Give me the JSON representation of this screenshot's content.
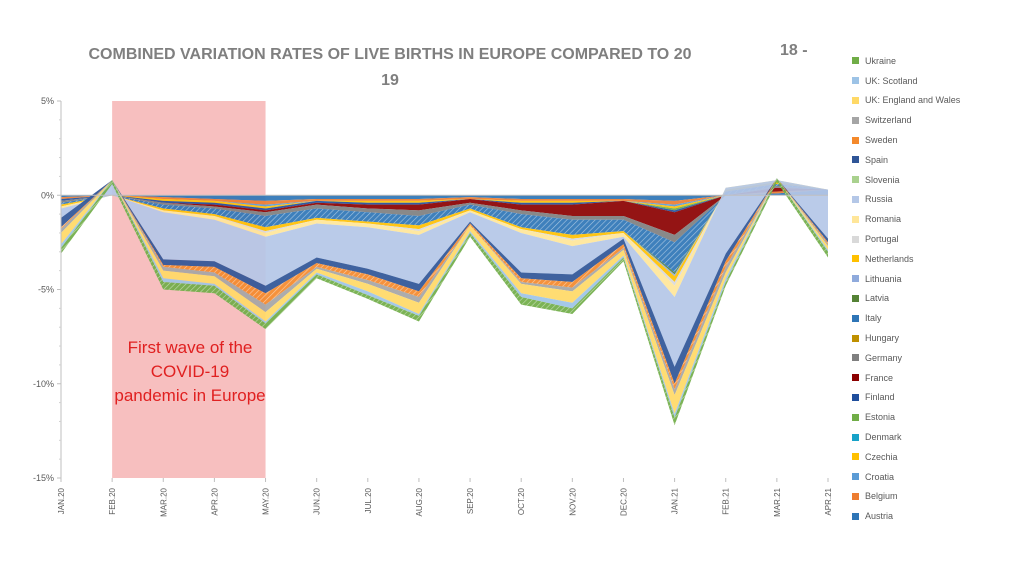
{
  "chart_data": {
    "type": "area",
    "title": "COMBINED VARIATION RATES OF LIVE BIRTHS IN EUROPE COMPARED TO 20",
    "title_line2": "19",
    "title_suffix": "18 -",
    "x": [
      "JAN.20",
      "FEB.20",
      "MAR.20",
      "APR.20",
      "MAY.20",
      "JUN.20",
      "JUL.20",
      "AUG.20",
      "SEP.20",
      "OCT.20",
      "NOV.20",
      "DEC.20",
      "JAN.21",
      "FEB.21",
      "MAR.21",
      "APR.21"
    ],
    "y_ticks": [
      "5%",
      "0%",
      "-5%",
      "-10%",
      "-15%"
    ],
    "ylim": [
      -15,
      5
    ],
    "grid": false,
    "legend_position": "right",
    "annotation": {
      "text": "First wave of the COVID-19 pandemic in Europe",
      "x_start": "FEB.20",
      "x_end": "MAY.20",
      "color": "#f4a9a9"
    },
    "series": [
      {
        "name": "Austria",
        "color": "#2e75b6",
        "values": [
          -0.1,
          0.0,
          -0.1,
          -0.2,
          -0.3,
          -0.2,
          -0.2,
          -0.2,
          -0.1,
          -0.2,
          -0.2,
          -0.2,
          -0.3,
          0.0,
          0.1,
          0.3
        ]
      },
      {
        "name": "Belgium",
        "color": "#ed7d31",
        "values": [
          -0.1,
          0.0,
          -0.1,
          -0.1,
          -0.2,
          -0.1,
          -0.1,
          -0.1,
          -0.1,
          -0.1,
          -0.1,
          -0.1,
          -0.2,
          0.0,
          0.1,
          0.0
        ]
      },
      {
        "name": "Croatia",
        "color": "#5b9bd5",
        "values": [
          0.0,
          0.0,
          0.0,
          0.0,
          -0.1,
          0.0,
          0.0,
          0.0,
          0.0,
          0.0,
          0.0,
          0.0,
          -0.1,
          0.0,
          0.0,
          0.0
        ]
      },
      {
        "name": "Czechia",
        "color": "#ffc000",
        "values": [
          0.0,
          0.0,
          -0.1,
          -0.1,
          -0.1,
          0.0,
          -0.1,
          -0.1,
          0.0,
          -0.1,
          -0.1,
          0.0,
          -0.1,
          0.0,
          0.0,
          0.0
        ]
      },
      {
        "name": "Denmark",
        "color": "#17a2c8",
        "values": [
          0.0,
          0.0,
          0.0,
          0.0,
          0.0,
          0.0,
          0.0,
          0.0,
          0.0,
          0.0,
          0.0,
          0.0,
          0.0,
          0.0,
          0.0,
          0.0
        ]
      },
      {
        "name": "Estonia",
        "color": "#70ad47",
        "values": [
          0.0,
          0.0,
          0.0,
          0.0,
          0.0,
          0.0,
          0.0,
          0.0,
          0.0,
          0.0,
          0.0,
          0.0,
          -0.1,
          0.0,
          0.0,
          0.0
        ]
      },
      {
        "name": "Finland",
        "color": "#1f4e9c",
        "values": [
          -0.1,
          0.0,
          -0.1,
          -0.1,
          -0.1,
          -0.1,
          -0.1,
          -0.1,
          0.0,
          -0.1,
          -0.1,
          0.0,
          -0.1,
          0.0,
          0.0,
          0.0
        ]
      },
      {
        "name": "France",
        "color": "#8b0000",
        "values": [
          0.0,
          0.0,
          0.0,
          -0.1,
          -0.1,
          -0.1,
          -0.2,
          -0.3,
          -0.2,
          -0.3,
          -0.6,
          -0.8,
          -1.2,
          0.0,
          0.2,
          0.0
        ]
      },
      {
        "name": "Germany",
        "color": "#7f7f7f",
        "values": [
          -0.1,
          0.0,
          -0.1,
          -0.1,
          -0.2,
          -0.2,
          -0.2,
          -0.3,
          -0.1,
          -0.2,
          -0.2,
          -0.2,
          -0.4,
          0.0,
          0.1,
          0.0
        ]
      },
      {
        "name": "Hungary",
        "color": "#bf9000",
        "values": [
          0.0,
          0.0,
          0.0,
          0.0,
          0.0,
          0.0,
          0.0,
          0.0,
          0.0,
          0.0,
          0.0,
          0.0,
          0.0,
          0.0,
          0.0,
          0.0
        ]
      },
      {
        "name": "Italy",
        "color": "#2e75b6",
        "values": [
          -0.1,
          0.0,
          -0.2,
          -0.3,
          -0.6,
          -0.5,
          -0.5,
          -0.5,
          -0.2,
          -0.7,
          -0.8,
          -0.6,
          -1.6,
          0.2,
          0.1,
          0.0
        ]
      },
      {
        "name": "Latvia",
        "color": "#548235",
        "values": [
          0.0,
          0.0,
          0.0,
          0.0,
          0.0,
          0.0,
          0.0,
          0.0,
          0.0,
          0.0,
          0.0,
          0.0,
          -0.1,
          0.0,
          0.0,
          0.0
        ]
      },
      {
        "name": "Lithuania",
        "color": "#8faadc",
        "values": [
          0.0,
          0.0,
          0.0,
          0.0,
          0.0,
          0.0,
          0.0,
          0.0,
          0.0,
          0.0,
          0.0,
          0.0,
          -0.1,
          0.0,
          0.0,
          0.0
        ]
      },
      {
        "name": "Netherlands",
        "color": "#ffc000",
        "values": [
          -0.1,
          0.0,
          -0.1,
          -0.1,
          -0.2,
          -0.1,
          -0.1,
          -0.2,
          -0.1,
          -0.1,
          -0.2,
          -0.1,
          -0.3,
          0.1,
          0.1,
          0.0
        ]
      },
      {
        "name": "Portugal",
        "color": "#d9d9d9",
        "values": [
          0.0,
          0.0,
          0.0,
          0.0,
          -0.1,
          0.0,
          0.0,
          -0.1,
          0.0,
          0.0,
          -0.1,
          0.0,
          -0.2,
          0.0,
          0.0,
          0.0
        ]
      },
      {
        "name": "Romania",
        "color": "#ffe699",
        "values": [
          -0.1,
          0.0,
          -0.1,
          -0.2,
          -0.2,
          -0.2,
          -0.2,
          -0.2,
          -0.1,
          -0.2,
          -0.3,
          -0.2,
          -0.6,
          0.1,
          0.1,
          0.0
        ]
      },
      {
        "name": "Russia",
        "color": "#b4c7e7",
        "values": [
          -0.5,
          0.8,
          -2.5,
          -2.2,
          -2.6,
          -1.8,
          -2.2,
          -2.6,
          -0.5,
          -2.1,
          -1.5,
          -0.1,
          -3.7,
          -3.5,
          0.1,
          -2.6
        ]
      },
      {
        "name": "Slovenia",
        "color": "#a9d18e",
        "values": [
          0.0,
          0.0,
          0.0,
          0.0,
          0.0,
          0.0,
          0.0,
          0.0,
          0.0,
          0.0,
          0.0,
          0.0,
          0.0,
          0.0,
          0.0,
          0.0
        ]
      },
      {
        "name": "Spain",
        "color": "#2f5597",
        "values": [
          -0.5,
          0.0,
          -0.3,
          -0.3,
          -0.4,
          -0.3,
          -0.3,
          -0.4,
          -0.1,
          -0.3,
          -0.4,
          -0.3,
          -0.9,
          -0.4,
          0.0,
          -0.2
        ]
      },
      {
        "name": "Sweden",
        "color": "#f4892b",
        "values": [
          -0.1,
          0.0,
          -0.1,
          -0.3,
          -0.6,
          -0.2,
          -0.3,
          -0.3,
          -0.1,
          -0.2,
          -0.3,
          -0.2,
          -0.3,
          -0.3,
          0.0,
          -0.1
        ]
      },
      {
        "name": "Switzerland",
        "color": "#a5a5a5",
        "values": [
          -0.2,
          0.0,
          -0.2,
          -0.2,
          -0.4,
          -0.1,
          -0.2,
          -0.3,
          0.0,
          -0.1,
          -0.2,
          -0.1,
          -0.3,
          -0.3,
          0.0,
          -0.1
        ]
      },
      {
        "name": "UK: England and Wales",
        "color": "#ffd966",
        "values": [
          -0.6,
          0.0,
          -0.4,
          -0.4,
          -0.5,
          -0.2,
          -0.4,
          -0.6,
          -0.3,
          -0.5,
          -0.6,
          -0.3,
          -1.0,
          -0.3,
          0.0,
          -0.2
        ]
      },
      {
        "name": "UK: Scotland",
        "color": "#9dc3e6",
        "values": [
          -0.2,
          0.0,
          -0.2,
          -0.1,
          -0.1,
          -0.1,
          -0.2,
          -0.1,
          -0.1,
          -0.2,
          -0.3,
          -0.1,
          -0.2,
          -0.2,
          0.0,
          -0.1
        ]
      },
      {
        "name": "Ukraine",
        "color": "#70ad47",
        "values": [
          -0.3,
          -0.2,
          -0.4,
          -0.4,
          -0.3,
          -0.2,
          -0.2,
          -0.3,
          -0.2,
          -0.4,
          -0.3,
          -0.2,
          -0.4,
          -0.2,
          -0.2,
          -0.3
        ]
      }
    ]
  }
}
